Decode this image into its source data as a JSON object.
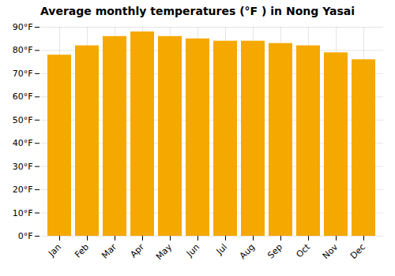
{
  "chart_data": {
    "type": "bar",
    "title": "Average monthly temperatures (°F ) in Nong Yasai",
    "categories": [
      "Jan",
      "Feb",
      "Mar",
      "Apr",
      "May",
      "Jun",
      "Jul",
      "Aug",
      "Sep",
      "Oct",
      "Nov",
      "Dec"
    ],
    "values": [
      78,
      82,
      86,
      88,
      86,
      85,
      84,
      84,
      83,
      82,
      79,
      76
    ],
    "color": "#F5A800",
    "ylim": [
      0,
      90
    ],
    "yticks": [
      {
        "value": 0,
        "label": "0°F"
      },
      {
        "value": 10,
        "label": "10°F"
      },
      {
        "value": 20,
        "label": "20°F"
      },
      {
        "value": 30,
        "label": "30°F"
      },
      {
        "value": 40,
        "label": "40°F"
      },
      {
        "value": 50,
        "label": "50°F"
      },
      {
        "value": 60,
        "label": "60°F"
      },
      {
        "value": 70,
        "label": "70°F"
      },
      {
        "value": 80,
        "label": "80°F"
      },
      {
        "value": 90,
        "label": "90°F"
      }
    ],
    "grid": true
  }
}
